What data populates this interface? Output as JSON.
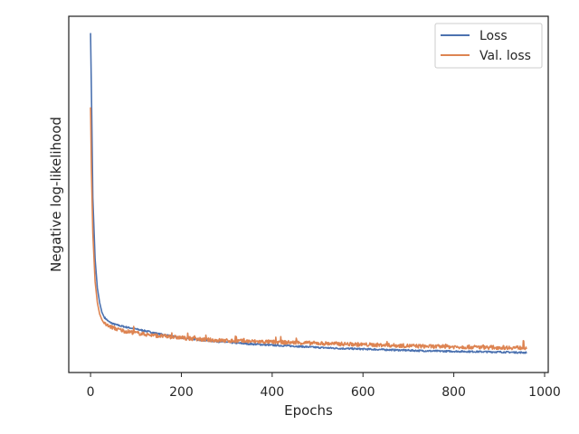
{
  "chart_data": {
    "type": "line",
    "title": "",
    "xlabel": "Epochs",
    "ylabel": "Negative log-likelihood",
    "xlim": [
      -48,
      1008
    ],
    "ylim": [
      0,
      1
    ],
    "x_ticks": [
      "0",
      "200",
      "400",
      "600",
      "800",
      "1000"
    ],
    "y_ticks_shown": false,
    "grid": false,
    "legend_position": "top-right",
    "series": [
      {
        "name": "Loss",
        "color": "#4c72b0",
        "x": [
          0,
          2,
          5,
          10,
          15,
          20,
          25,
          30,
          40,
          50,
          60,
          75,
          100,
          125,
          150,
          175,
          200,
          250,
          300,
          350,
          400,
          450,
          500,
          550,
          600,
          650,
          700,
          750,
          800,
          850,
          900,
          960
        ],
        "y": [
          0.99,
          0.8,
          0.48,
          0.29,
          0.2,
          0.155,
          0.125,
          0.11,
          0.096,
          0.089,
          0.085,
          0.08,
          0.073,
          0.066,
          0.058,
          0.052,
          0.046,
          0.038,
          0.032,
          0.027,
          0.023,
          0.02,
          0.016,
          0.013,
          0.011,
          0.009,
          0.007,
          0.005,
          0.004,
          0.003,
          0.002,
          0.0
        ]
      },
      {
        "name": "Val. loss",
        "color": "#dd8452",
        "x": [
          0,
          2,
          5,
          10,
          15,
          20,
          25,
          30,
          40,
          50,
          60,
          75,
          100,
          125,
          150,
          175,
          200,
          250,
          300,
          350,
          400,
          450,
          500,
          550,
          600,
          650,
          700,
          750,
          800,
          850,
          900,
          960
        ],
        "y": [
          0.76,
          0.56,
          0.37,
          0.22,
          0.155,
          0.12,
          0.102,
          0.09,
          0.082,
          0.077,
          0.072,
          0.067,
          0.061,
          0.056,
          0.052,
          0.049,
          0.046,
          0.04,
          0.037,
          0.035,
          0.033,
          0.031,
          0.029,
          0.027,
          0.025,
          0.023,
          0.021,
          0.019,
          0.018,
          0.017,
          0.016,
          0.015
        ]
      }
    ]
  }
}
